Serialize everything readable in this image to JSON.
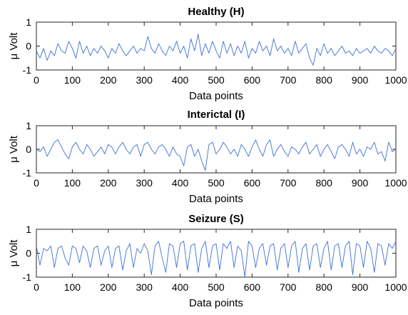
{
  "chart_data": [
    {
      "type": "line",
      "title": "Healthy (H)",
      "xlabel": "Data points",
      "ylabel": "μ Volt",
      "xlim": [
        0,
        1000
      ],
      "ylim": [
        -1,
        1
      ],
      "xticks": [
        "0",
        "100",
        "200",
        "300",
        "400",
        "500",
        "600",
        "700",
        "800",
        "900",
        "1000"
      ],
      "yticks": [
        "1",
        "0",
        "-1"
      ],
      "color": "#3b6fd6",
      "grid": false,
      "series": [
        {
          "x": [
            0,
            10,
            20,
            30,
            40,
            50,
            60,
            70,
            80,
            90,
            100,
            110,
            120,
            130,
            140,
            150,
            160,
            170,
            180,
            190,
            200,
            210,
            220,
            230,
            240,
            250,
            260,
            270,
            280,
            290,
            300,
            310,
            320,
            330,
            340,
            350,
            360,
            370,
            380,
            390,
            400,
            410,
            420,
            430,
            440,
            450,
            460,
            470,
            480,
            490,
            500,
            510,
            520,
            530,
            540,
            550,
            560,
            570,
            580,
            590,
            600,
            610,
            620,
            630,
            640,
            650,
            660,
            670,
            680,
            690,
            700,
            710,
            720,
            730,
            740,
            750,
            760,
            770,
            780,
            790,
            800,
            810,
            820,
            830,
            840,
            850,
            860,
            870,
            880,
            890,
            900,
            910,
            920,
            930,
            940,
            950,
            960,
            970,
            980,
            990,
            1000
          ],
          "y": [
            -0.2,
            -0.5,
            -0.1,
            -0.6,
            -0.2,
            -0.4,
            0.1,
            -0.2,
            -0.3,
            0.2,
            -0.1,
            -0.5,
            0.2,
            -0.3,
            0.0,
            -0.4,
            -0.1,
            -0.3,
            0.0,
            -0.2,
            -0.5,
            -0.1,
            -0.3,
            0.1,
            -0.2,
            -0.4,
            -0.2,
            0.0,
            -0.3,
            -0.1,
            -0.2,
            0.4,
            -0.1,
            -0.3,
            0.1,
            -0.2,
            -0.4,
            0.0,
            -0.2,
            0.2,
            -0.3,
            0.0,
            -0.5,
            0.3,
            -0.2,
            0.5,
            -0.4,
            0.1,
            -0.3,
            0.2,
            -0.2,
            -0.5,
            0.2,
            -0.3,
            0.1,
            -0.4,
            0.0,
            -0.3,
            0.2,
            -0.5,
            -0.1,
            -0.3,
            0.2,
            -0.2,
            0.0,
            -0.4,
            0.3,
            -0.2,
            0.0,
            -0.3,
            -0.1,
            -0.4,
            0.2,
            -0.3,
            -0.1,
            0.1,
            -0.5,
            -0.8,
            -0.1,
            -0.4,
            0.1,
            -0.3,
            -0.1,
            -0.4,
            -0.2,
            0.0,
            -0.3,
            -0.2,
            -0.4,
            -0.1,
            -0.3,
            -0.2,
            -0.1,
            -0.3,
            0.0,
            -0.2,
            -0.3,
            -0.1,
            -0.2,
            -0.4,
            -0.1
          ]
        }
      ]
    },
    {
      "type": "line",
      "title": "Interictal (I)",
      "xlabel": "Data points",
      "ylabel": "μ Volt",
      "xlim": [
        0,
        1000
      ],
      "ylim": [
        -1,
        1
      ],
      "xticks": [
        "0",
        "100",
        "200",
        "300",
        "400",
        "500",
        "600",
        "700",
        "800",
        "900",
        "1000"
      ],
      "yticks": [
        "1",
        "0",
        "-1"
      ],
      "color": "#3b6fd6",
      "grid": false,
      "series": [
        {
          "x": [
            0,
            10,
            20,
            30,
            40,
            50,
            60,
            70,
            80,
            90,
            100,
            110,
            120,
            130,
            140,
            150,
            160,
            170,
            180,
            190,
            200,
            210,
            220,
            230,
            240,
            250,
            260,
            270,
            280,
            290,
            300,
            310,
            320,
            330,
            340,
            350,
            360,
            370,
            380,
            390,
            400,
            410,
            420,
            430,
            440,
            450,
            460,
            470,
            480,
            490,
            500,
            510,
            520,
            530,
            540,
            550,
            560,
            570,
            580,
            590,
            600,
            610,
            620,
            630,
            640,
            650,
            660,
            670,
            680,
            690,
            700,
            710,
            720,
            730,
            740,
            750,
            760,
            770,
            780,
            790,
            800,
            810,
            820,
            830,
            840,
            850,
            860,
            870,
            880,
            890,
            900,
            910,
            920,
            930,
            940,
            950,
            960,
            970,
            980,
            990,
            1000
          ],
          "y": [
            0.0,
            -0.1,
            0.1,
            -0.3,
            0.0,
            0.3,
            0.4,
            0.1,
            -0.2,
            -0.4,
            0.1,
            0.3,
            0.0,
            -0.2,
            0.2,
            0.0,
            -0.3,
            -0.1,
            0.1,
            -0.2,
            0.2,
            0.1,
            -0.2,
            0.1,
            0.3,
            0.0,
            -0.2,
            0.1,
            0.2,
            -0.3,
            0.2,
            0.3,
            0.0,
            -0.2,
            0.1,
            0.2,
            0.0,
            -0.3,
            0.1,
            -0.2,
            -0.3,
            -0.7,
            0.1,
            0.2,
            -0.3,
            0.0,
            -0.5,
            -0.9,
            0.2,
            0.3,
            -0.2,
            0.0,
            0.3,
            0.1,
            -0.2,
            0.0,
            -0.3,
            0.2,
            0.0,
            -0.3,
            0.1,
            0.4,
            0.0,
            -0.3,
            0.2,
            0.4,
            -0.3,
            0.0,
            0.2,
            -0.1,
            -0.3,
            0.1,
            0.0,
            -0.2,
            0.1,
            0.3,
            -0.2,
            0.0,
            0.2,
            -0.3,
            0.0,
            0.2,
            -0.1,
            -0.4,
            0.1,
            0.2,
            0.0,
            -0.3,
            0.3,
            -0.2,
            0.0,
            -0.3,
            0.1,
            0.0,
            0.3,
            -0.2,
            -0.1,
            -0.5,
            0.3,
            -0.1,
            0.0
          ]
        }
      ]
    },
    {
      "type": "line",
      "title": "Seizure (S)",
      "xlabel": "Data points",
      "ylabel": "μ Volt",
      "xlim": [
        0,
        1000
      ],
      "ylim": [
        -1,
        1
      ],
      "xticks": [
        "0",
        "100",
        "200",
        "300",
        "400",
        "500",
        "600",
        "700",
        "800",
        "900",
        "1000"
      ],
      "yticks": [
        "1",
        "0",
        "-1"
      ],
      "color": "#3b6fd6",
      "grid": false,
      "series": [
        {
          "x": [
            0,
            10,
            20,
            30,
            40,
            50,
            60,
            70,
            80,
            90,
            100,
            110,
            120,
            130,
            140,
            150,
            160,
            170,
            180,
            190,
            200,
            210,
            220,
            230,
            240,
            250,
            260,
            270,
            280,
            290,
            300,
            310,
            320,
            330,
            340,
            350,
            360,
            370,
            380,
            390,
            400,
            410,
            420,
            430,
            440,
            450,
            460,
            470,
            480,
            490,
            500,
            510,
            520,
            530,
            540,
            550,
            560,
            570,
            580,
            590,
            600,
            610,
            620,
            630,
            640,
            650,
            660,
            670,
            680,
            690,
            700,
            710,
            720,
            730,
            740,
            750,
            760,
            770,
            780,
            790,
            800,
            810,
            820,
            830,
            840,
            850,
            860,
            870,
            880,
            890,
            900,
            910,
            920,
            930,
            940,
            950,
            960,
            970,
            980,
            990,
            1000
          ],
          "y": [
            0.3,
            -0.5,
            0.2,
            0.1,
            0.3,
            -0.6,
            0.2,
            0.3,
            -0.2,
            -0.5,
            0.3,
            0.2,
            -0.4,
            0.3,
            0.1,
            -0.6,
            0.2,
            0.3,
            -0.5,
            0.1,
            0.3,
            -0.6,
            0.2,
            0.3,
            -0.7,
            0.1,
            0.4,
            -0.6,
            0.2,
            0.0,
            0.4,
            0.1,
            -0.9,
            0.3,
            0.5,
            -0.2,
            -0.8,
            0.4,
            0.3,
            -0.6,
            0.4,
            0.5,
            -0.7,
            0.3,
            0.4,
            -0.8,
            0.2,
            0.5,
            -0.6,
            0.3,
            0.4,
            -0.7,
            0.4,
            0.2,
            0.5,
            -0.6,
            0.3,
            0.1,
            -1.0,
            0.5,
            0.3,
            -0.6,
            0.2,
            0.4,
            -0.5,
            0.3,
            0.4,
            -0.7,
            0.2,
            0.4,
            -0.6,
            0.3,
            0.5,
            -0.8,
            0.2,
            0.4,
            -0.7,
            0.3,
            0.4,
            -0.6,
            0.2,
            0.5,
            -0.7,
            0.3,
            0.4,
            -0.6,
            0.3,
            0.5,
            -0.9,
            0.4,
            0.3,
            -0.6,
            0.5,
            0.2,
            -0.8,
            0.4,
            0.3,
            -0.5,
            0.4,
            0.2,
            0.5
          ]
        }
      ]
    }
  ]
}
